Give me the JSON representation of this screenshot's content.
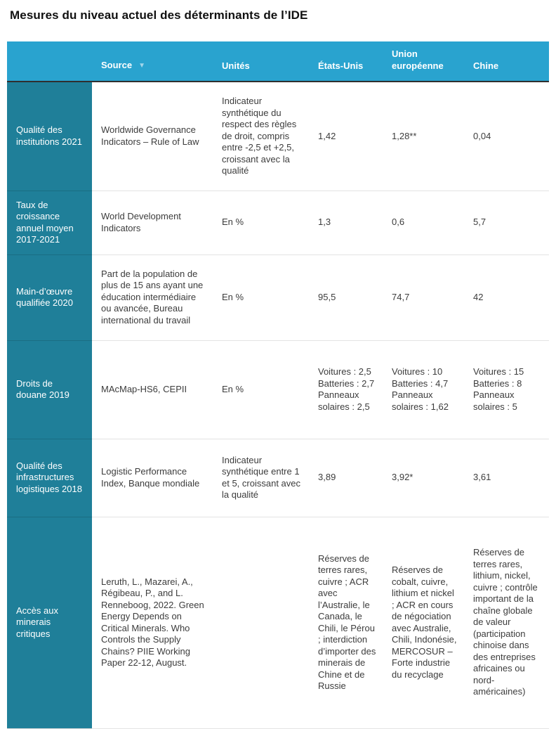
{
  "title": "Mesures du niveau actuel des déterminants de l’IDE",
  "chart_data": {
    "type": "table",
    "columns": [
      "",
      "Source",
      "Unités",
      "États-Unis",
      "Union européenne",
      "Chine"
    ],
    "sort": {
      "column": "Source",
      "direction": "desc",
      "icon": "▼"
    },
    "rows": [
      {
        "label": "Qualité des institutions 2021",
        "source": "Worldwide Governance Indicators – Rule of Law",
        "units": "Indicateur synthétique du respect des règles de droit, compris entre -2,5 et +2,5, croissant avec la qualité",
        "us": "1,42",
        "eu": "1,28**",
        "china": "0,04"
      },
      {
        "label": "Taux de croissance annuel moyen 2017-2021",
        "source": "World Development Indicators",
        "units": "En %",
        "us": "1,3",
        "eu": "0,6",
        "china": "5,7"
      },
      {
        "label": "Main-d’œuvre qualifiée 2020",
        "source": "Part de la population de plus de 15 ans ayant une éducation intermédiaire ou avancée, Bureau international du travail",
        "units": "En %",
        "us": "95,5",
        "eu": "74,7",
        "china": "42"
      },
      {
        "label": "Droits de douane 2019",
        "source": "MAcMap-HS6, CEPII",
        "units": "En %",
        "us": "Voitures : 2,5 Batteries : 2,7 Panneaux solaires : 2,5",
        "eu": "Voitures : 10 Batteries : 4,7 Panneaux solaires : 1,62",
        "china": "Voitures : 15 Batteries : 8 Panneaux solaires : 5"
      },
      {
        "label": "Qualité des infrastructures logistiques 2018",
        "source": "Logistic Performance Index, Banque mondiale",
        "units": "Indicateur synthétique entre 1 et 5, croissant avec la qualité",
        "us": "3,89",
        "eu": "3,92*",
        "china": "3,61"
      },
      {
        "label": "Accès aux minerais critiques",
        "source": "Leruth, L., Mazarei, A., Régibeau, P., and L. Renneboog, 2022. Green Energy Depends on Critical Minerals. Who Controls the Supply Chains? PIIE Working Paper 22-12, August.",
        "units": "",
        "us": "Réserves de terres rares, cuivre ; ACR avec l’Australie, le Canada, le Chili, le Pérou ; interdiction d’importer des minerais de Chine et de Russie",
        "eu": "Réserves de cobalt, cuivre, lithium et nickel ; ACR en cours de négociation avec Australie, Chili, Indonésie, MERCOSUR – Forte industrie du recyclage",
        "china": "Réserves de terres rares, lithium, nickel, cuivre ; contrôle important de la chaîne globale de valeur (participation chinoise dans des entreprises africaines ou nord-américaines)"
      }
    ]
  },
  "colors": {
    "header_bg": "#29A3CF",
    "row_header_bg": "#1F7F99",
    "header_text": "#FFFFFF",
    "body_text": "#3C3C3C",
    "header_border": "#2F2F2F",
    "row_divider": "#E3E3E3",
    "sort_icon": "#A3D6EA"
  }
}
